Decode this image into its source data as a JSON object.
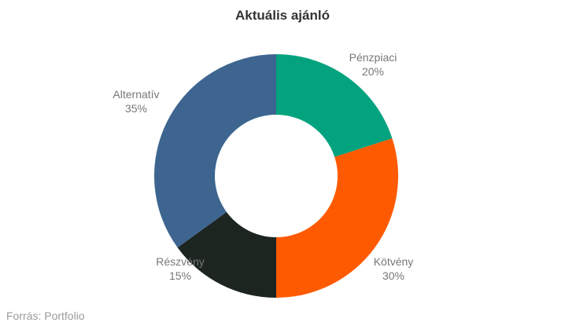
{
  "chart_data": {
    "type": "pie",
    "title": "Aktuális ajánló",
    "slices": [
      {
        "label": "Pénzpiaci",
        "value_label": "20%",
        "value": 20,
        "color": "#03a37f"
      },
      {
        "label": "Kötvény",
        "value_label": "30%",
        "value": 30,
        "color": "#fe5a01"
      },
      {
        "label": "Részvény",
        "value_label": "15%",
        "value": 15,
        "color": "#1d2521"
      },
      {
        "label": "Alternatív",
        "value_label": "35%",
        "value": 35,
        "color": "#3d6590"
      }
    ]
  },
  "source": "Forrás: Portfolio"
}
